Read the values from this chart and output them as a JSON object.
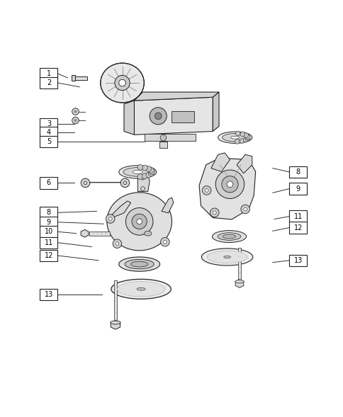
{
  "background_color": "#ffffff",
  "line_color": "#222222",
  "fig_width": 4.85,
  "fig_height": 5.89,
  "dpi": 100,
  "left_labels": [
    [
      1,
      0.14,
      0.895,
      0.195,
      0.883
    ],
    [
      2,
      0.14,
      0.868,
      0.23,
      0.856
    ],
    [
      3,
      0.14,
      0.748,
      0.215,
      0.748
    ],
    [
      4,
      0.14,
      0.722,
      0.215,
      0.722
    ],
    [
      5,
      0.14,
      0.696,
      0.42,
      0.696
    ],
    [
      6,
      0.14,
      0.575,
      0.215,
      0.575
    ],
    [
      8,
      0.14,
      0.488,
      0.28,
      0.492
    ],
    [
      9,
      0.14,
      0.46,
      0.3,
      0.455
    ],
    [
      10,
      0.14,
      0.432,
      0.22,
      0.427
    ],
    [
      11,
      0.14,
      0.4,
      0.265,
      0.388
    ],
    [
      12,
      0.14,
      0.362,
      0.285,
      0.348
    ],
    [
      13,
      0.14,
      0.248,
      0.295,
      0.248
    ]
  ],
  "right_labels": [
    [
      8,
      0.87,
      0.607,
      0.795,
      0.618
    ],
    [
      9,
      0.87,
      0.558,
      0.795,
      0.546
    ],
    [
      11,
      0.87,
      0.477,
      0.8,
      0.469
    ],
    [
      12,
      0.87,
      0.444,
      0.795,
      0.434
    ],
    [
      13,
      0.87,
      0.348,
      0.795,
      0.342
    ]
  ]
}
